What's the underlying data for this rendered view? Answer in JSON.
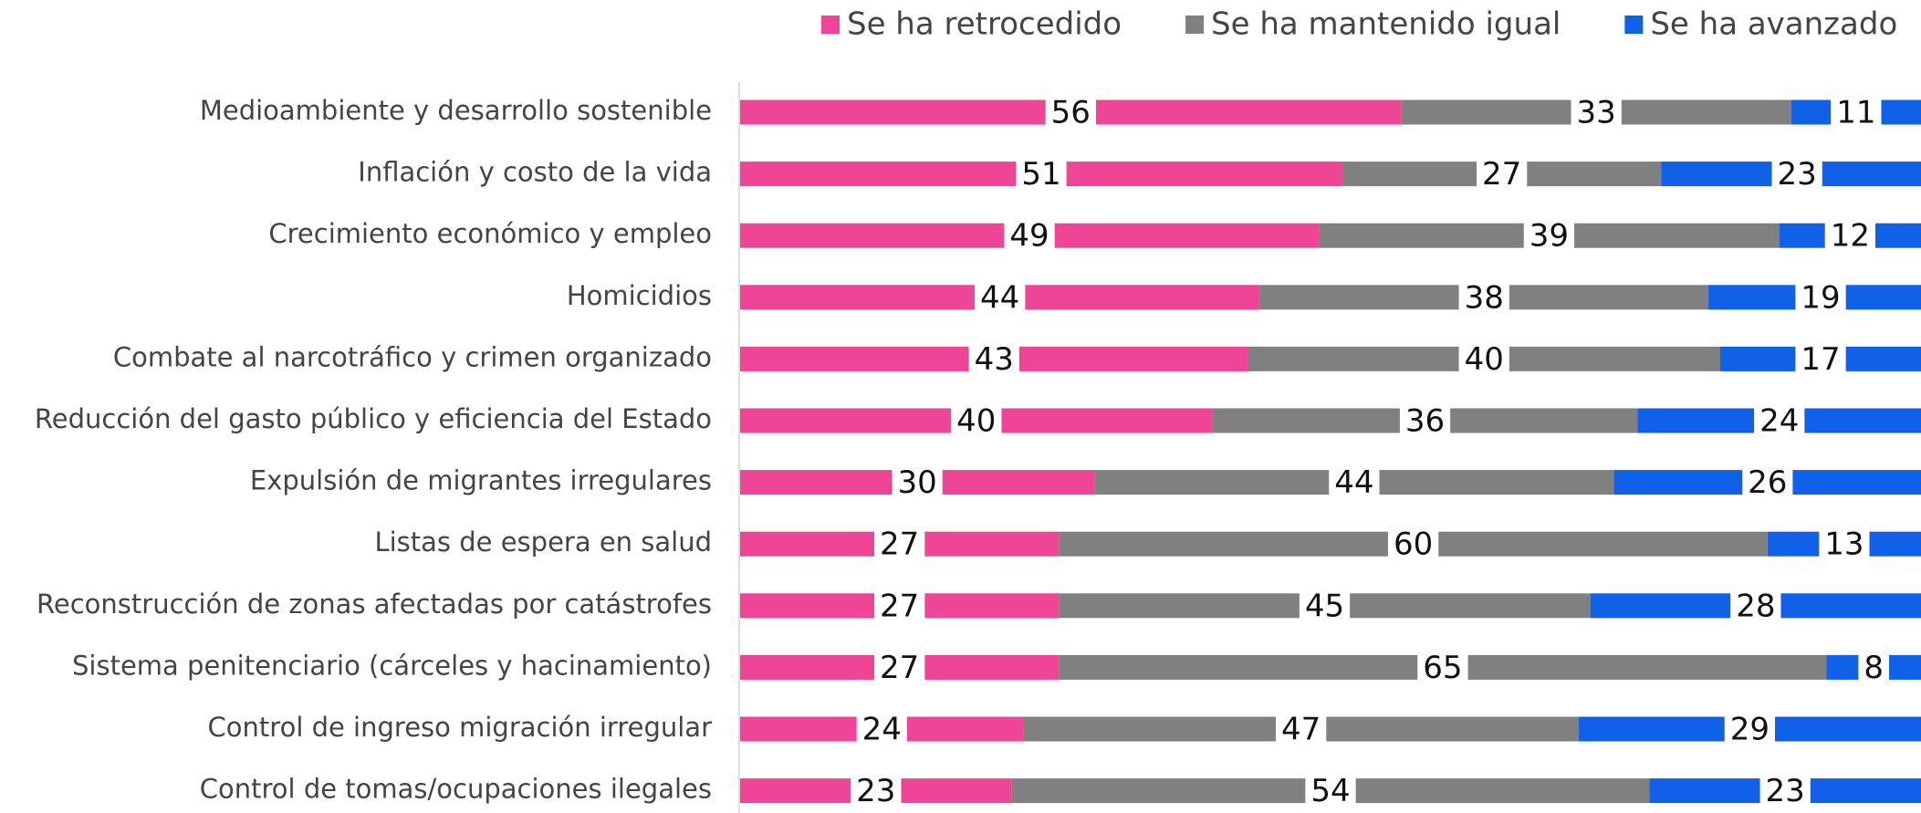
{
  "chart_data": {
    "type": "stacked-barh",
    "categories": [
      "Medioambiente y desarrollo sostenible",
      "Inflación y costo de la vida",
      "Crecimiento económico y empleo",
      "Homicidios",
      "Combate al narcotráfico y crimen organizado",
      "Reducción del gasto público y eficiencia del Estado",
      "Expulsión de migrantes irregulares",
      "Listas de espera en salud",
      "Reconstrucción de zonas afectadas por catástrofes",
      "Sistema penitenciario (cárceles y hacinamiento)",
      "Control de ingreso migración irregular",
      "Control de tomas/ocupaciones ilegales"
    ],
    "series": [
      {
        "name": "Se ha retrocedido",
        "color": "#ee4596",
        "values": [
          56,
          51,
          49,
          44,
          43,
          40,
          30,
          27,
          27,
          27,
          24,
          23
        ]
      },
      {
        "name": "Se ha mantenido igual",
        "color": "#808080",
        "values": [
          33,
          27,
          39,
          38,
          40,
          36,
          44,
          60,
          45,
          65,
          47,
          54
        ]
      },
      {
        "name": "Se ha avanzado",
        "color": "#1160e8",
        "values": [
          11,
          23,
          12,
          19,
          17,
          24,
          26,
          13,
          28,
          8,
          29,
          23
        ]
      }
    ],
    "xlim": [
      0,
      100
    ],
    "legend": "top"
  }
}
